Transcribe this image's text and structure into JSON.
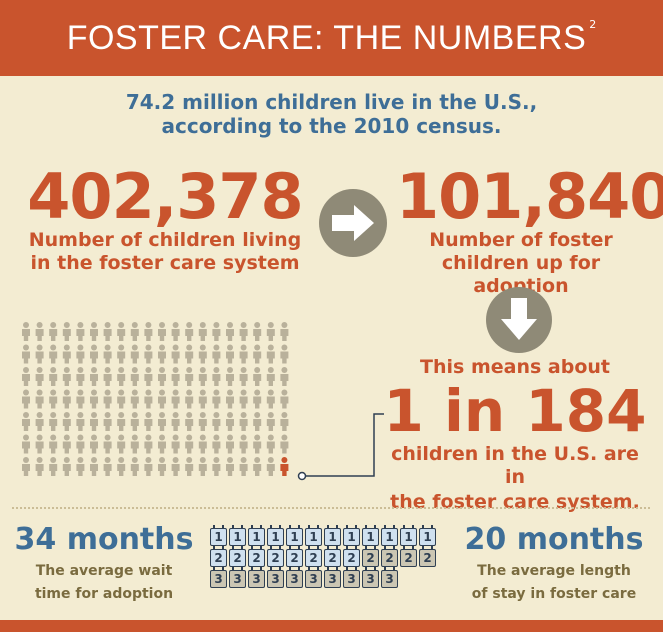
{
  "header": {
    "title": "FOSTER CARE: THE NUMBERS",
    "footnote_mark": "2"
  },
  "census_text": [
    "74.2 million children live in the U.S.,",
    "according to the 2010 census."
  ],
  "stats": {
    "in_care": {
      "number": "402,378",
      "caption": [
        "Number of children living",
        "in the foster care system"
      ]
    },
    "for_adoption": {
      "number": "101,840",
      "caption": [
        "Number of foster",
        "children up for adoption"
      ]
    }
  },
  "ratio": {
    "intro": "This means about",
    "value": "1 in 184",
    "caption": [
      "children in the U.S. are in",
      "the foster care system."
    ]
  },
  "wait_adoption": {
    "value": "34 months",
    "caption": [
      "The average wait",
      "time for adoption"
    ]
  },
  "stay_foster": {
    "value": "20 months",
    "caption": [
      "The average length",
      "of stay in foster care"
    ]
  },
  "calendar_labels": {
    "row1": "1",
    "row2": "2",
    "row3": "3"
  },
  "colors": {
    "accent": "#c9542d",
    "blue": "#3e6e97",
    "background": "#f3ecd2",
    "people": "#b9b19b",
    "highlight": "#c9542d"
  },
  "icons": {
    "arrow_right": "arrow-right-icon",
    "arrow_down": "arrow-down-icon",
    "person": "person-icon",
    "calendar": "calendar-icon"
  }
}
